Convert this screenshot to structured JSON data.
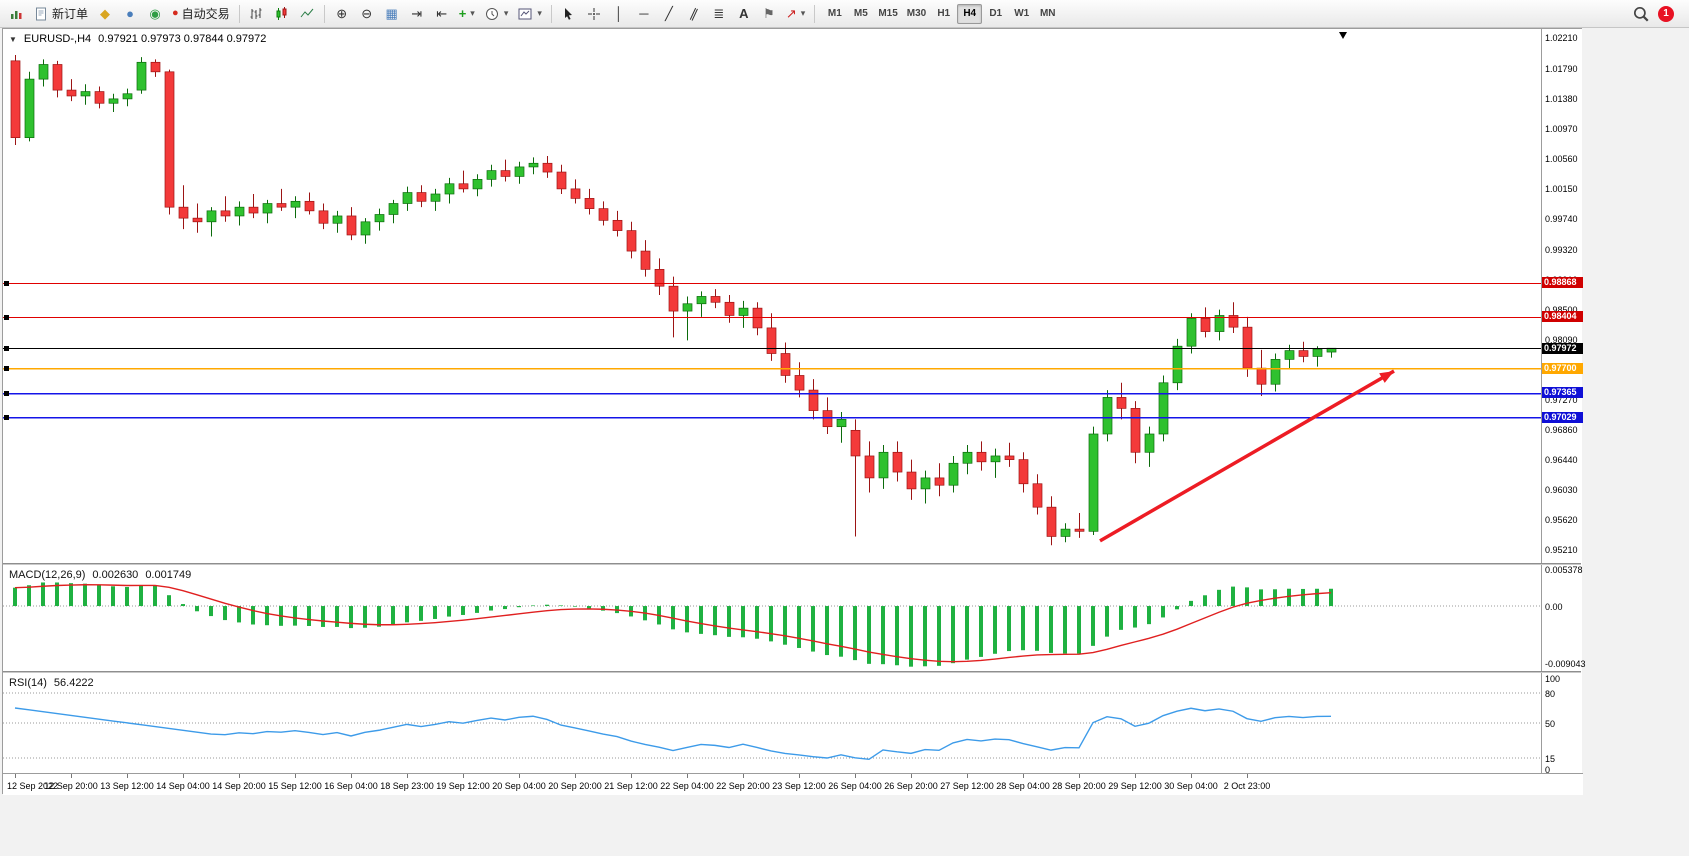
{
  "toolbar": {
    "new_order_label": "新订单",
    "auto_trading_label": "自动交易",
    "timeframes": [
      "M1",
      "M5",
      "M15",
      "M30",
      "H1",
      "H4",
      "D1",
      "W1",
      "MN"
    ],
    "active_timeframe": "H4",
    "notification_count": "1"
  },
  "icons": {
    "metaeditor": "◆",
    "market_watch": "●",
    "strategy_tester": "◉",
    "auto_trading_dot": "●",
    "zoom_in": "⊕",
    "zoom_out": "⊖",
    "tile_windows": "▦",
    "auto_scroll": "⇥",
    "chart_shift": "⇤",
    "indicators_plus": "+",
    "dropdown": "▾",
    "vertical_line": "│",
    "horizontal_line": "─",
    "trendline": "╱",
    "channel": "∥",
    "fibonacci": "≣",
    "text_tool": "A",
    "label_tool": "⚑",
    "arrow_tool": "↗",
    "collapse": "▼"
  },
  "chart": {
    "symbol_period": "EURUSD-,H4",
    "ohlc_text": "0.97921 0.97973 0.97844 0.97972"
  },
  "chart_data": {
    "type": "candlestick",
    "symbol": "EURUSD",
    "timeframe": "H4",
    "current_price": 0.97972,
    "ohlc_current": {
      "open": 0.97921,
      "high": 0.97973,
      "low": 0.97844,
      "close": 0.97972
    },
    "ylim": [
      0.9521,
      1.0221
    ],
    "colors": {
      "bull": "#2fc12f",
      "bull_dark": "#0c6b0c",
      "bear": "#f33a3a",
      "bear_dark": "#9c1414",
      "macd_histogram": "#1fb141",
      "macd_signal": "#e02020",
      "rsi_line": "#3d9be9"
    },
    "price_axis_ticks": [
      "1.02210",
      "1.01790",
      "1.01380",
      "1.00970",
      "1.00560",
      "1.00150",
      "0.99740",
      "0.99320",
      "0.98910",
      "0.98500",
      "0.98090",
      "0.97680",
      "0.97270",
      "0.96860",
      "0.96440",
      "0.96030",
      "0.95620",
      "0.95210"
    ],
    "time_axis_labels": [
      "12 Sep 2022",
      "12 Sep 20:00",
      "13 Sep 12:00",
      "14 Sep 04:00",
      "14 Sep 20:00",
      "15 Sep 12:00",
      "16 Sep 04:00",
      "18 Sep 23:00",
      "19 Sep 12:00",
      "20 Sep 04:00",
      "20 Sep 20:00",
      "21 Sep 12:00",
      "22 Sep 04:00",
      "22 Sep 20:00",
      "23 Sep 12:00",
      "26 Sep 04:00",
      "26 Sep 20:00",
      "27 Sep 12:00",
      "28 Sep 04:00",
      "28 Sep 20:00",
      "29 Sep 12:00",
      "30 Sep 04:00",
      "2 Oct 23:00"
    ],
    "hlines": [
      {
        "price": 0.98868,
        "label": "0.98868",
        "color": "#e00000",
        "width": 1,
        "badge_bg": "#d00000",
        "badge_fg": "#ffffff",
        "anchor": true
      },
      {
        "price": 0.98404,
        "label": "0.98404",
        "color": "#e00000",
        "width": 1,
        "badge_bg": "#d00000",
        "badge_fg": "#ffffff",
        "anchor": true
      },
      {
        "price": 0.97972,
        "label": "0.97972",
        "color": "#000000",
        "width": 1,
        "badge_bg": "#000000",
        "badge_fg": "#ffffff",
        "anchor": true
      },
      {
        "price": 0.977,
        "label": "0.97700",
        "color": "#ffa800",
        "width": 1.5,
        "badge_bg": "#ffa800",
        "badge_fg": "#ffffff",
        "anchor": true
      },
      {
        "price": 0.97365,
        "label": "0.97365",
        "color": "#1414e8",
        "width": 1.5,
        "badge_bg": "#0f0fd6",
        "badge_fg": "#ffffff",
        "anchor": true
      },
      {
        "price": 0.97029,
        "label": "0.97029",
        "color": "#1414e8",
        "width": 1.5,
        "badge_bg": "#0f0fd6",
        "badge_fg": "#ffffff",
        "anchor": true
      }
    ],
    "arrow": {
      "from_index": 77.5,
      "from_price": 0.9534,
      "to_index": 98.5,
      "to_price": 0.9766,
      "color": "#ed1c24"
    },
    "indicators": {
      "macd": {
        "label": "MACD(12,26,9)",
        "value_main": "0.002630",
        "value_signal": "0.001749",
        "scale_max": "0.005378",
        "scale_zero": "0.00",
        "scale_min": "-0.009043",
        "params": [
          12,
          26,
          9
        ]
      },
      "rsi": {
        "label": "RSI(14)",
        "value": "56.4222",
        "levels": [
          "100",
          "80",
          "50",
          "15",
          "0"
        ],
        "params": [
          14
        ]
      }
    },
    "candles": [
      [
        1.019,
        1.0198,
        1.0075,
        1.0085
      ],
      [
        1.0085,
        1.0175,
        1.008,
        1.0165
      ],
      [
        1.0165,
        1.0192,
        1.0155,
        1.0185
      ],
      [
        1.0185,
        1.019,
        1.014,
        1.015
      ],
      [
        1.015,
        1.0165,
        1.0135,
        1.0142
      ],
      [
        1.0142,
        1.0158,
        1.013,
        1.0148
      ],
      [
        1.0148,
        1.0155,
        1.0125,
        1.0132
      ],
      [
        1.0132,
        1.0145,
        1.012,
        1.0138
      ],
      [
        1.0138,
        1.0152,
        1.0128,
        1.0145
      ],
      [
        1.015,
        1.0195,
        1.0145,
        1.0188
      ],
      [
        1.0188,
        1.0192,
        1.0168,
        1.0175
      ],
      [
        1.0175,
        1.0178,
        0.998,
        0.999
      ],
      [
        0.999,
        1.002,
        0.996,
        0.9975
      ],
      [
        0.9975,
        0.9995,
        0.9955,
        0.997
      ],
      [
        0.997,
        0.999,
        0.995,
        0.9985
      ],
      [
        0.9985,
        1.0005,
        0.997,
        0.9978
      ],
      [
        0.9978,
        0.9998,
        0.9965,
        0.999
      ],
      [
        0.999,
        1.0008,
        0.9975,
        0.9982
      ],
      [
        0.9982,
        1.0,
        0.9968,
        0.9995
      ],
      [
        0.9995,
        1.0015,
        0.9985,
        0.999
      ],
      [
        0.999,
        1.0005,
        0.9975,
        0.9998
      ],
      [
        0.9998,
        1.001,
        0.998,
        0.9985
      ],
      [
        0.9985,
        0.9995,
        0.996,
        0.9968
      ],
      [
        0.9968,
        0.9985,
        0.9955,
        0.9978
      ],
      [
        0.9978,
        0.999,
        0.9945,
        0.9952
      ],
      [
        0.9952,
        0.9975,
        0.994,
        0.997
      ],
      [
        0.997,
        0.9988,
        0.9958,
        0.998
      ],
      [
        0.998,
        1.0,
        0.9968,
        0.9995
      ],
      [
        0.9995,
        1.0018,
        0.9985,
        1.001
      ],
      [
        1.001,
        1.002,
        0.999,
        0.9998
      ],
      [
        0.9998,
        1.0015,
        0.9985,
        1.0008
      ],
      [
        1.0008,
        1.003,
        0.9995,
        1.0022
      ],
      [
        1.0022,
        1.004,
        1.001,
        1.0015
      ],
      [
        1.0015,
        1.0035,
        1.0005,
        1.0028
      ],
      [
        1.0028,
        1.0048,
        1.0018,
        1.004
      ],
      [
        1.004,
        1.0055,
        1.0025,
        1.0032
      ],
      [
        1.0032,
        1.0052,
        1.0022,
        1.0045
      ],
      [
        1.0045,
        1.0058,
        1.0035,
        1.005
      ],
      [
        1.005,
        1.006,
        1.003,
        1.0038
      ],
      [
        1.0038,
        1.0048,
        1.0008,
        1.0015
      ],
      [
        1.0015,
        1.0028,
        0.9995,
        1.0002
      ],
      [
        1.0002,
        1.0015,
        0.998,
        0.9988
      ],
      [
        0.9988,
        0.9998,
        0.9965,
        0.9972
      ],
      [
        0.9972,
        0.9985,
        0.995,
        0.9958
      ],
      [
        0.9958,
        0.997,
        0.992,
        0.993
      ],
      [
        0.993,
        0.9945,
        0.9895,
        0.9905
      ],
      [
        0.9905,
        0.992,
        0.987,
        0.9882
      ],
      [
        0.9882,
        0.9895,
        0.9812,
        0.9848
      ],
      [
        0.9848,
        0.9868,
        0.9808,
        0.9858
      ],
      [
        0.9858,
        0.9875,
        0.984,
        0.9868
      ],
      [
        0.9868,
        0.9878,
        0.9852,
        0.986
      ],
      [
        0.986,
        0.987,
        0.9832,
        0.9842
      ],
      [
        0.9842,
        0.9862,
        0.9825,
        0.9852
      ],
      [
        0.9852,
        0.986,
        0.9815,
        0.9825
      ],
      [
        0.9825,
        0.9845,
        0.978,
        0.979
      ],
      [
        0.979,
        0.9805,
        0.975,
        0.976
      ],
      [
        0.976,
        0.9778,
        0.973,
        0.974
      ],
      [
        0.974,
        0.9755,
        0.97,
        0.9712
      ],
      [
        0.9712,
        0.973,
        0.968,
        0.969
      ],
      [
        0.969,
        0.971,
        0.9668,
        0.97
      ],
      [
        0.9685,
        0.97,
        0.954,
        0.965
      ],
      [
        0.965,
        0.967,
        0.96,
        0.962
      ],
      [
        0.962,
        0.9665,
        0.9605,
        0.9655
      ],
      [
        0.9655,
        0.967,
        0.9615,
        0.9628
      ],
      [
        0.9628,
        0.9645,
        0.959,
        0.9605
      ],
      [
        0.9605,
        0.963,
        0.9585,
        0.962
      ],
      [
        0.962,
        0.964,
        0.9595,
        0.961
      ],
      [
        0.961,
        0.965,
        0.96,
        0.964
      ],
      [
        0.964,
        0.9665,
        0.9625,
        0.9655
      ],
      [
        0.9655,
        0.967,
        0.963,
        0.9642
      ],
      [
        0.9642,
        0.966,
        0.962,
        0.965
      ],
      [
        0.965,
        0.9668,
        0.9635,
        0.9645
      ],
      [
        0.9645,
        0.9655,
        0.96,
        0.9612
      ],
      [
        0.9612,
        0.9625,
        0.957,
        0.958
      ],
      [
        0.958,
        0.9595,
        0.9528,
        0.954
      ],
      [
        0.954,
        0.9558,
        0.9532,
        0.955
      ],
      [
        0.955,
        0.9572,
        0.9538,
        0.9547
      ],
      [
        0.9547,
        0.969,
        0.9542,
        0.968
      ],
      [
        0.968,
        0.974,
        0.967,
        0.973
      ],
      [
        0.973,
        0.975,
        0.97,
        0.9715
      ],
      [
        0.9715,
        0.9725,
        0.964,
        0.9655
      ],
      [
        0.9655,
        0.969,
        0.9635,
        0.968
      ],
      [
        0.968,
        0.976,
        0.967,
        0.975
      ],
      [
        0.975,
        0.981,
        0.974,
        0.98
      ],
      [
        0.98,
        0.9845,
        0.979,
        0.9838
      ],
      [
        0.9838,
        0.9853,
        0.9812,
        0.982
      ],
      [
        0.982,
        0.985,
        0.9808,
        0.9842
      ],
      [
        0.9842,
        0.986,
        0.9818,
        0.9826
      ],
      [
        0.9826,
        0.984,
        0.9758,
        0.977
      ],
      [
        0.977,
        0.9795,
        0.9732,
        0.9748
      ],
      [
        0.9748,
        0.979,
        0.9738,
        0.9782
      ],
      [
        0.9782,
        0.9802,
        0.977,
        0.9794
      ],
      [
        0.9794,
        0.9806,
        0.9778,
        0.9786
      ],
      [
        0.9786,
        0.98,
        0.9772,
        0.9796
      ],
      [
        0.9792,
        0.97973,
        0.97844,
        0.97972
      ]
    ]
  }
}
